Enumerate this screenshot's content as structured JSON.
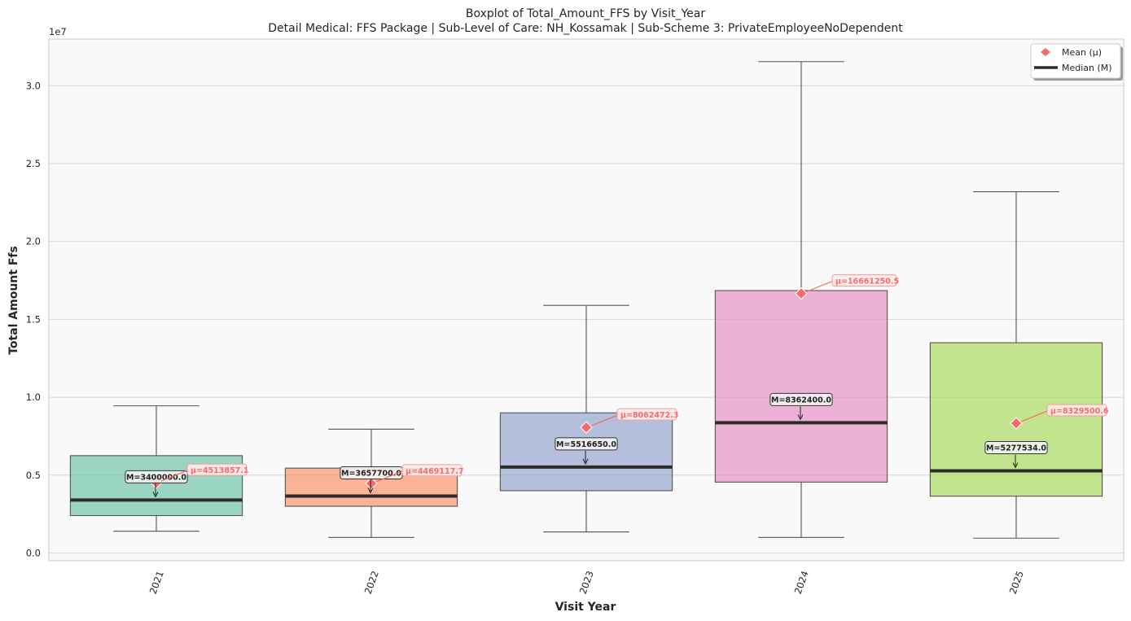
{
  "chart_data": {
    "type": "box",
    "title": "Boxplot of Total_Amount_FFS by Visit_Year",
    "subtitle": "Detail Medical: FFS Package | Sub-Level of Care: NH_Kossamak | Sub-Scheme 3: PrivateEmployeeNoDependent",
    "xlabel": "Visit Year",
    "ylabel": "Total Amount Ffs",
    "y_scale_label": "1e7",
    "ylim": [
      -0.05,
      3.3
    ],
    "y_ticks": [
      0.0,
      0.5,
      1.0,
      1.5,
      2.0,
      2.5,
      3.0
    ],
    "y_tick_labels": [
      "0.0",
      "0.5",
      "1.0",
      "1.5",
      "2.0",
      "2.5",
      "3.0"
    ],
    "grid": true,
    "legend_position": "top-right",
    "legend": [
      {
        "label": "Mean (μ)",
        "marker": "diamond",
        "color": "#f46d6d"
      },
      {
        "label": "Median (M)",
        "marker": "line",
        "color": "#2b2b2b"
      }
    ],
    "categories": [
      "2021",
      "2022",
      "2023",
      "2024",
      "2025"
    ],
    "boxes": [
      {
        "category": "2021",
        "whisker_low": 0.14,
        "q1": 0.24,
        "median": 0.34,
        "q3": 0.625,
        "whisker_high": 0.945,
        "mean": 0.4513857,
        "median_label": "M=3400000.0",
        "mean_label": "μ=4513857.1",
        "color": "#66c2a5"
      },
      {
        "category": "2022",
        "whisker_low": 0.1,
        "q1": 0.3,
        "median": 0.36577,
        "q3": 0.545,
        "whisker_high": 0.795,
        "mean": 0.4469118,
        "median_label": "M=3657700.0",
        "mean_label": "μ=4469117.7",
        "color": "#fc8d62"
      },
      {
        "category": "2023",
        "whisker_low": 0.135,
        "q1": 0.4,
        "median": 0.551665,
        "q3": 0.9,
        "whisker_high": 1.59,
        "mean": 0.8062472,
        "median_label": "M=5516650.0",
        "mean_label": "μ=8062472.3",
        "color": "#8da0cb"
      },
      {
        "category": "2024",
        "whisker_low": 0.1,
        "q1": 0.455,
        "median": 0.83624,
        "q3": 1.685,
        "whisker_high": 3.155,
        "mean": 1.666125,
        "median_label": "M=8362400.0",
        "mean_label": "μ=16661250.5",
        "color": "#e78ac3"
      },
      {
        "category": "2025",
        "whisker_low": 0.095,
        "q1": 0.365,
        "median": 0.5277534,
        "q3": 1.35,
        "whisker_high": 2.32,
        "mean": 0.83295,
        "median_label": "M=5277534.0",
        "mean_label": "μ=8329500.6",
        "color": "#a6d854"
      }
    ]
  }
}
